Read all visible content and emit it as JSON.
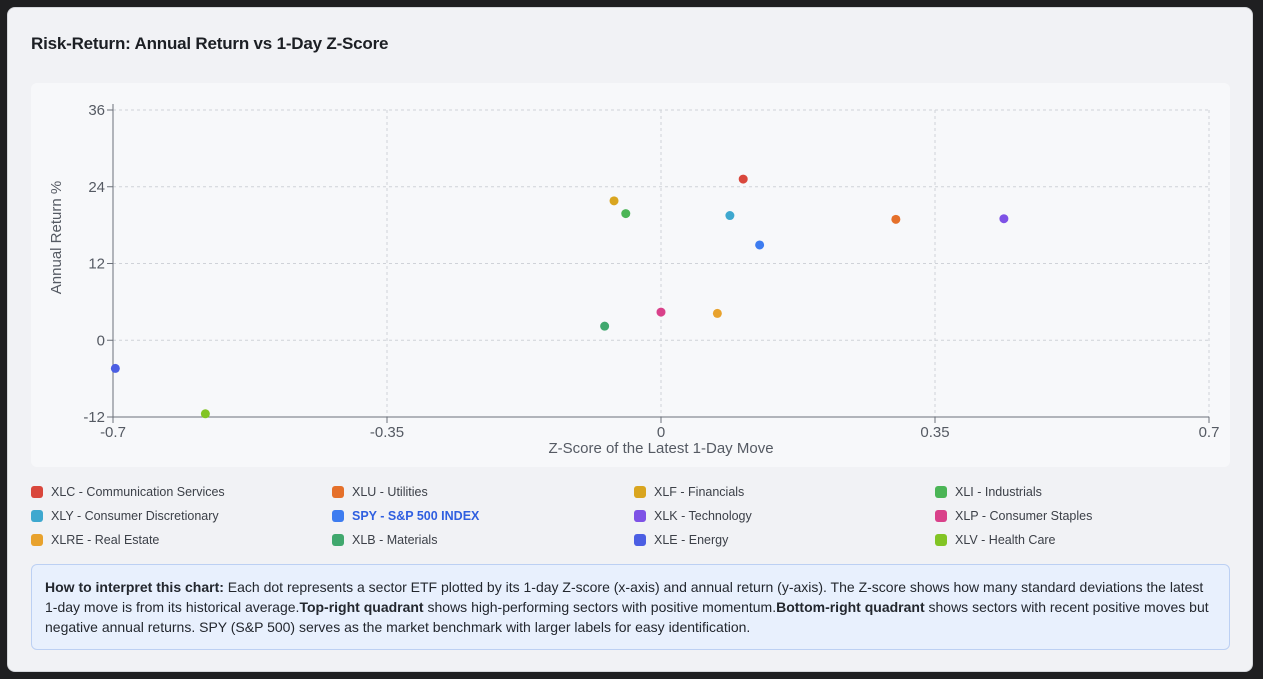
{
  "card": {
    "title": "Risk-Return: Annual Return vs 1-Day Z-Score"
  },
  "chart_data": {
    "type": "scatter",
    "title": "Risk-Return: Annual Return vs 1-Day Z-Score",
    "xlabel": "Z-Score of the Latest 1-Day Move",
    "ylabel": "Annual Return %",
    "xlim": [
      -0.7,
      0.7
    ],
    "ylim": [
      -12,
      36
    ],
    "x_ticks": [
      -0.7,
      -0.35,
      0,
      0.35,
      0.7
    ],
    "x_tick_labels": [
      "-0.7",
      "-0.35",
      "0",
      "0.35",
      "0.7"
    ],
    "y_ticks": [
      -12,
      0,
      12,
      24,
      36
    ],
    "y_tick_labels": [
      "-12",
      "0",
      "12",
      "24",
      "36"
    ],
    "grid": true,
    "points": [
      {
        "label": "XLC - Communication Services",
        "x": 0.105,
        "y": 25.2,
        "color": "#d9473c"
      },
      {
        "label": "XLU - Utilities",
        "x": 0.3,
        "y": 18.9,
        "color": "#e5702a"
      },
      {
        "label": "XLF - Financials",
        "x": -0.06,
        "y": 21.8,
        "color": "#d9a51f"
      },
      {
        "label": "XLI - Industrials",
        "x": -0.045,
        "y": 19.8,
        "color": "#4bb556"
      },
      {
        "label": "XLY - Consumer Discretionary",
        "x": 0.088,
        "y": 19.5,
        "color": "#3ea8cf"
      },
      {
        "label": "SPY - S&P 500 INDEX",
        "x": 0.126,
        "y": 14.9,
        "color": "#3d7cf0"
      },
      {
        "label": "XLK - Technology",
        "x": 0.438,
        "y": 19.0,
        "color": "#7e52e6"
      },
      {
        "label": "XLP - Consumer Staples",
        "x": 0.0,
        "y": 4.4,
        "color": "#d9418a"
      },
      {
        "label": "XLRE - Real Estate",
        "x": 0.072,
        "y": 4.2,
        "color": "#e8a22d"
      },
      {
        "label": "XLB - Materials",
        "x": -0.072,
        "y": 2.2,
        "color": "#40a86e"
      },
      {
        "label": "XLE - Energy",
        "x": -0.697,
        "y": -4.4,
        "color": "#4b5ee3"
      },
      {
        "label": "XLV - Health Care",
        "x": -0.582,
        "y": -11.5,
        "color": "#82c424"
      }
    ]
  },
  "legend": {
    "items": [
      {
        "label": "XLC - Communication Services",
        "color": "#d9473c",
        "bold": false
      },
      {
        "label": "XLU - Utilities",
        "color": "#e5702a",
        "bold": false
      },
      {
        "label": "XLF - Financials",
        "color": "#d9a51f",
        "bold": false
      },
      {
        "label": "XLI - Industrials",
        "color": "#4bb556",
        "bold": false
      },
      {
        "label": "XLY - Consumer Discretionary",
        "color": "#3ea8cf",
        "bold": false
      },
      {
        "label": "SPY - S&P 500 INDEX",
        "color": "#3d7cf0",
        "bold": true
      },
      {
        "label": "XLK - Technology",
        "color": "#7e52e6",
        "bold": false
      },
      {
        "label": "XLP - Consumer Staples",
        "color": "#d9418a",
        "bold": false
      },
      {
        "label": "XLRE - Real Estate",
        "color": "#e8a22d",
        "bold": false
      },
      {
        "label": "XLB - Materials",
        "color": "#40a86e",
        "bold": false
      },
      {
        "label": "XLE - Energy",
        "color": "#4b5ee3",
        "bold": false
      },
      {
        "label": "XLV - Health Care",
        "color": "#82c424",
        "bold": false
      }
    ]
  },
  "note": {
    "heading": "How to interpret this chart:",
    "text1": " Each dot represents a sector ETF plotted by its 1-day Z-score (x-axis) and annual return (y-axis). The Z-score shows how many standard deviations the latest 1-day move is from its historical average.",
    "bold2": "Top-right quadrant",
    "text2": " shows high-performing sectors with positive momentum.",
    "bold3": "Bottom-right quadrant",
    "text3": " shows sectors with recent positive moves but negative annual returns. SPY (S&P 500) serves as the market benchmark with larger labels for easy identification."
  }
}
